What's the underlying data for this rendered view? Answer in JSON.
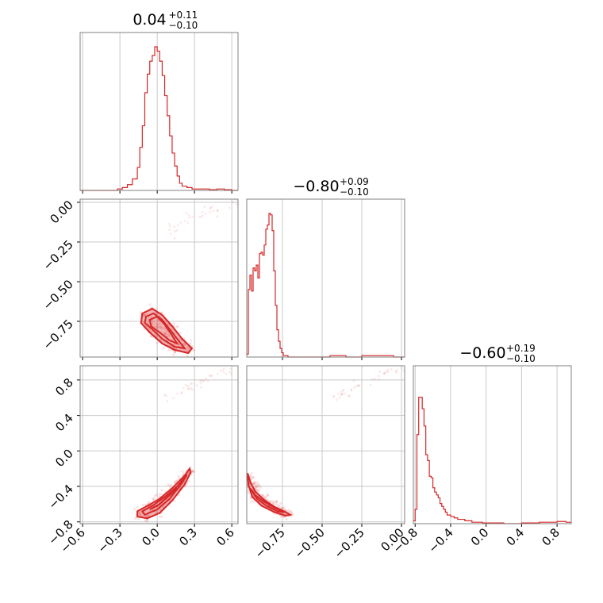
{
  "chart_data": {
    "type": "corner",
    "parameters": [
      {
        "title_value": "0.04",
        "title_plus": "+0.11",
        "title_minus": "−0.10",
        "range": [
          -0.62,
          0.65
        ],
        "ticks": [
          -0.6,
          -0.3,
          0.0,
          0.3,
          0.6
        ],
        "tick_labels": [
          "−0.6",
          "−0.3",
          "0.0",
          "0.3",
          "0.6"
        ]
      },
      {
        "title_value": "−0.80",
        "title_plus": "+0.09",
        "title_minus": "−0.10",
        "range": [
          -0.975,
          0.02
        ],
        "ticks": [
          -0.75,
          -0.5,
          -0.25,
          0.0
        ],
        "tick_labels": [
          "−0.75",
          "−0.50",
          "−0.25",
          "0.00"
        ],
        "y_tick_labels": [
          "0.00",
          "−0.25",
          "−0.50",
          "−0.75"
        ]
      },
      {
        "title_value": "−0.60",
        "title_plus": "+0.19",
        "title_minus": "−0.10",
        "range": [
          -0.82,
          0.96
        ],
        "ticks": [
          -0.8,
          -0.4,
          0.0,
          0.4,
          0.8
        ],
        "tick_labels": [
          "−0.8",
          "−0.4",
          "0.0",
          "0.4",
          "0.8"
        ]
      }
    ],
    "histograms": [
      {
        "param": 0,
        "bins_x": [
          -0.62,
          -0.56,
          -0.5,
          -0.44,
          -0.38,
          -0.32,
          -0.28,
          -0.24,
          -0.2,
          -0.16,
          -0.14,
          -0.12,
          -0.1,
          -0.08,
          -0.06,
          -0.04,
          -0.02,
          0.0,
          0.02,
          0.04,
          0.06,
          0.08,
          0.1,
          0.12,
          0.14,
          0.16,
          0.18,
          0.2,
          0.24,
          0.28,
          0.32,
          0.36,
          0.42,
          0.48,
          0.54,
          0.6,
          0.65
        ],
        "counts": [
          0,
          0,
          0,
          0,
          0,
          0.01,
          0.02,
          0.04,
          0.08,
          0.16,
          0.3,
          0.45,
          0.68,
          0.81,
          0.9,
          0.94,
          1.0,
          0.97,
          0.9,
          0.8,
          0.66,
          0.52,
          0.38,
          0.26,
          0.17,
          0.1,
          0.05,
          0.03,
          0.02,
          0.01,
          0.01,
          0.01,
          0.005,
          0.01,
          0.005,
          0.0
        ]
      },
      {
        "param": 1,
        "bins_x": [
          -0.975,
          -0.965,
          -0.955,
          -0.945,
          -0.935,
          -0.925,
          -0.915,
          -0.905,
          -0.895,
          -0.885,
          -0.875,
          -0.865,
          -0.855,
          -0.845,
          -0.835,
          -0.825,
          -0.815,
          -0.805,
          -0.795,
          -0.785,
          -0.775,
          -0.765,
          -0.755,
          -0.745,
          -0.735,
          -0.725,
          -0.715,
          -0.705,
          -0.69,
          -0.67,
          -0.65,
          -0.63,
          -0.6,
          -0.55,
          -0.45,
          -0.35,
          -0.25,
          -0.15,
          -0.05,
          0.02
        ],
        "counts": [
          0.02,
          0.47,
          0.57,
          0.46,
          0.62,
          0.6,
          0.64,
          0.55,
          0.72,
          0.73,
          0.71,
          0.78,
          0.89,
          0.92,
          1.0,
          0.99,
          0.88,
          0.6,
          0.36,
          0.19,
          0.11,
          0.06,
          0.03,
          0.01,
          0.01,
          0.01,
          0.0,
          0.0,
          0.0,
          0.0,
          0.0,
          0.0,
          0.0,
          0.0,
          0.01,
          0.0,
          0.01,
          0.01,
          0.0
        ]
      },
      {
        "param": 2,
        "bins_x": [
          -0.82,
          -0.8,
          -0.78,
          -0.76,
          -0.74,
          -0.72,
          -0.7,
          -0.68,
          -0.66,
          -0.64,
          -0.62,
          -0.6,
          -0.58,
          -0.56,
          -0.54,
          -0.52,
          -0.5,
          -0.48,
          -0.46,
          -0.44,
          -0.4,
          -0.36,
          -0.32,
          -0.28,
          -0.24,
          -0.2,
          -0.16,
          -0.12,
          -0.08,
          -0.04,
          0.0,
          0.08,
          0.2,
          0.4,
          0.6,
          0.7,
          0.8,
          0.9,
          0.96
        ],
        "counts": [
          0.02,
          0.1,
          0.62,
          0.88,
          0.88,
          0.8,
          0.68,
          0.48,
          0.44,
          0.33,
          0.32,
          0.25,
          0.22,
          0.2,
          0.18,
          0.14,
          0.12,
          0.1,
          0.08,
          0.06,
          0.05,
          0.04,
          0.03,
          0.03,
          0.02,
          0.02,
          0.01,
          0.01,
          0.01,
          0.005,
          0.005,
          0.005,
          0.0,
          0.005,
          0.01,
          0.01,
          0.015,
          0.01
        ]
      }
    ],
    "contours": [
      {
        "x_param": 0,
        "y_param": 1,
        "levels": [
          [
            [
              -0.12,
              -0.7
            ],
            [
              -0.04,
              -0.67
            ],
            [
              0.04,
              -0.71
            ],
            [
              0.12,
              -0.78
            ],
            [
              0.2,
              -0.86
            ],
            [
              0.28,
              -0.92
            ],
            [
              0.25,
              -0.95
            ],
            [
              0.14,
              -0.93
            ],
            [
              0.04,
              -0.89
            ],
            [
              -0.06,
              -0.82
            ],
            [
              -0.13,
              -0.76
            ]
          ],
          [
            [
              -0.09,
              -0.72
            ],
            [
              -0.03,
              -0.7
            ],
            [
              0.04,
              -0.74
            ],
            [
              0.11,
              -0.81
            ],
            [
              0.18,
              -0.88
            ],
            [
              0.22,
              -0.92
            ],
            [
              0.14,
              -0.91
            ],
            [
              0.04,
              -0.86
            ],
            [
              -0.04,
              -0.8
            ],
            [
              -0.1,
              -0.76
            ]
          ],
          [
            [
              -0.06,
              -0.74
            ],
            [
              0.0,
              -0.72
            ],
            [
              0.06,
              -0.77
            ],
            [
              0.12,
              -0.84
            ],
            [
              0.16,
              -0.89
            ],
            [
              0.1,
              -0.87
            ],
            [
              0.02,
              -0.82
            ],
            [
              -0.05,
              -0.78
            ]
          ]
        ]
      },
      {
        "x_param": 0,
        "y_param": 2,
        "levels": [
          [
            [
              -0.16,
              -0.68
            ],
            [
              -0.08,
              -0.62
            ],
            [
              0.02,
              -0.54
            ],
            [
              0.12,
              -0.42
            ],
            [
              0.22,
              -0.28
            ],
            [
              0.26,
              -0.2
            ],
            [
              0.27,
              -0.24
            ],
            [
              0.22,
              -0.38
            ],
            [
              0.12,
              -0.56
            ],
            [
              0.02,
              -0.7
            ],
            [
              -0.08,
              -0.76
            ],
            [
              -0.16,
              -0.74
            ]
          ],
          [
            [
              -0.12,
              -0.68
            ],
            [
              -0.04,
              -0.62
            ],
            [
              0.06,
              -0.52
            ],
            [
              0.16,
              -0.4
            ],
            [
              0.24,
              -0.27
            ],
            [
              0.2,
              -0.36
            ],
            [
              0.1,
              -0.54
            ],
            [
              0.0,
              -0.66
            ],
            [
              -0.1,
              -0.72
            ]
          ],
          [
            [
              -0.06,
              -0.66
            ],
            [
              0.02,
              -0.6
            ],
            [
              0.1,
              -0.5
            ],
            [
              0.16,
              -0.42
            ],
            [
              0.08,
              -0.52
            ],
            [
              0.0,
              -0.62
            ]
          ]
        ]
      },
      {
        "x_param": 1,
        "y_param": 2,
        "levels": [
          [
            [
              -0.97,
              -0.25
            ],
            [
              -0.95,
              -0.36
            ],
            [
              -0.92,
              -0.46
            ],
            [
              -0.86,
              -0.56
            ],
            [
              -0.8,
              -0.63
            ],
            [
              -0.74,
              -0.68
            ],
            [
              -0.7,
              -0.72
            ],
            [
              -0.73,
              -0.73
            ],
            [
              -0.8,
              -0.69
            ],
            [
              -0.88,
              -0.62
            ],
            [
              -0.94,
              -0.52
            ],
            [
              -0.965,
              -0.38
            ]
          ],
          [
            [
              -0.955,
              -0.42
            ],
            [
              -0.92,
              -0.5
            ],
            [
              -0.86,
              -0.58
            ],
            [
              -0.8,
              -0.64
            ],
            [
              -0.74,
              -0.69
            ],
            [
              -0.78,
              -0.68
            ],
            [
              -0.85,
              -0.62
            ],
            [
              -0.91,
              -0.54
            ]
          ]
        ]
      }
    ]
  }
}
